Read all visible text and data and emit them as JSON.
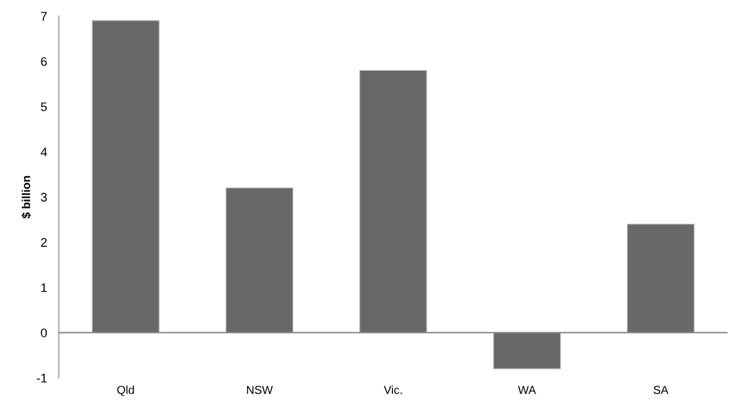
{
  "chart_data": {
    "type": "bar",
    "ylabel": "$ billion",
    "categories": [
      "Qld",
      "NSW",
      "Vic.",
      "WA",
      "SA"
    ],
    "values": [
      6.9,
      3.2,
      5.8,
      -0.8,
      2.4
    ],
    "color": "#686868",
    "ylim": [
      -1,
      7
    ],
    "yticks": [
      -1,
      0,
      1,
      2,
      3,
      4,
      5,
      6,
      7
    ],
    "ref_lines": [
      {
        "axis": "y",
        "value": 0,
        "color": "#888888",
        "line_style": "solid"
      }
    ],
    "grid": false,
    "legend": false
  }
}
